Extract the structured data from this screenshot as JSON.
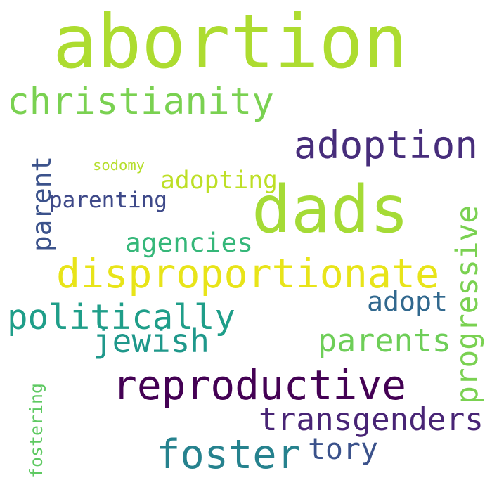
{
  "words": [
    {
      "text": "abortion",
      "color": "#addc30"
    },
    {
      "text": "christianity",
      "color": "#7ad151"
    },
    {
      "text": "adoption",
      "color": "#472d7b"
    },
    {
      "text": "sodomy",
      "color": "#b5de2b"
    },
    {
      "text": "dads",
      "color": "#a5db36"
    },
    {
      "text": "adopting",
      "color": "#bddf26"
    },
    {
      "text": "parent",
      "color": "#3b528b"
    },
    {
      "text": "parenting",
      "color": "#3e4989"
    },
    {
      "text": "agencies",
      "color": "#35b779"
    },
    {
      "text": "progressive",
      "color": "#7ad151"
    },
    {
      "text": "disproportionate",
      "color": "#e8e419"
    },
    {
      "text": "adopt",
      "color": "#31688e"
    },
    {
      "text": "politically",
      "color": "#1f9e89"
    },
    {
      "text": "jewish",
      "color": "#1f988b"
    },
    {
      "text": "parents",
      "color": "#6ece58"
    },
    {
      "text": "reproductive",
      "color": "#440154"
    },
    {
      "text": "transgenders",
      "color": "#482475"
    },
    {
      "text": "fostering",
      "color": "#5ec962"
    },
    {
      "text": "tory",
      "color": "#3b528b"
    },
    {
      "text": "foster",
      "color": "#26828e"
    }
  ]
}
